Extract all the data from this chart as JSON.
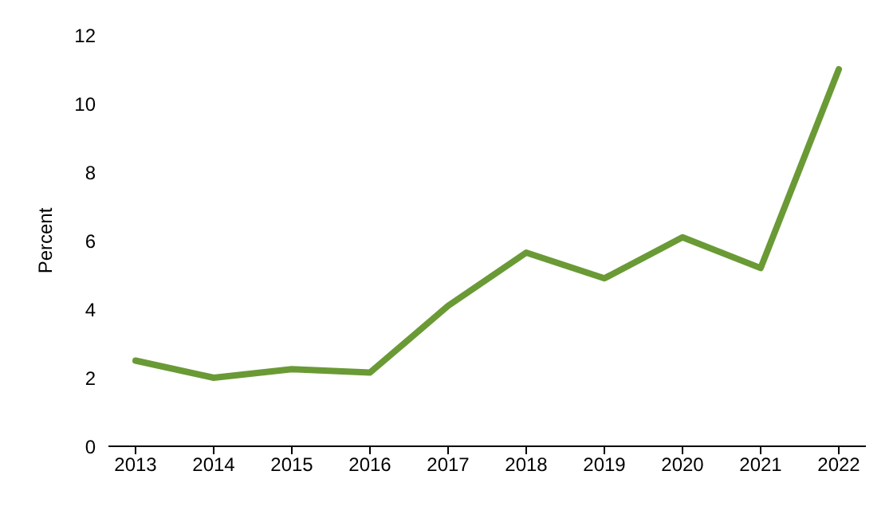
{
  "chart_data": {
    "type": "line",
    "ylabel": "Percent",
    "categories": [
      "2013",
      "2014",
      "2015",
      "2016",
      "2017",
      "2018",
      "2019",
      "2020",
      "2021",
      "2022"
    ],
    "series": [
      {
        "color": "#6a9a35",
        "values": [
          2.5,
          2.0,
          2.25,
          2.15,
          4.1,
          5.65,
          4.9,
          6.1,
          5.2,
          11.0
        ]
      }
    ],
    "ylim": [
      0,
      12
    ],
    "yticks": [
      0,
      2,
      4,
      6,
      8,
      10,
      12
    ],
    "grid": false,
    "legend": false,
    "marker": "none",
    "line_style": "solid"
  }
}
